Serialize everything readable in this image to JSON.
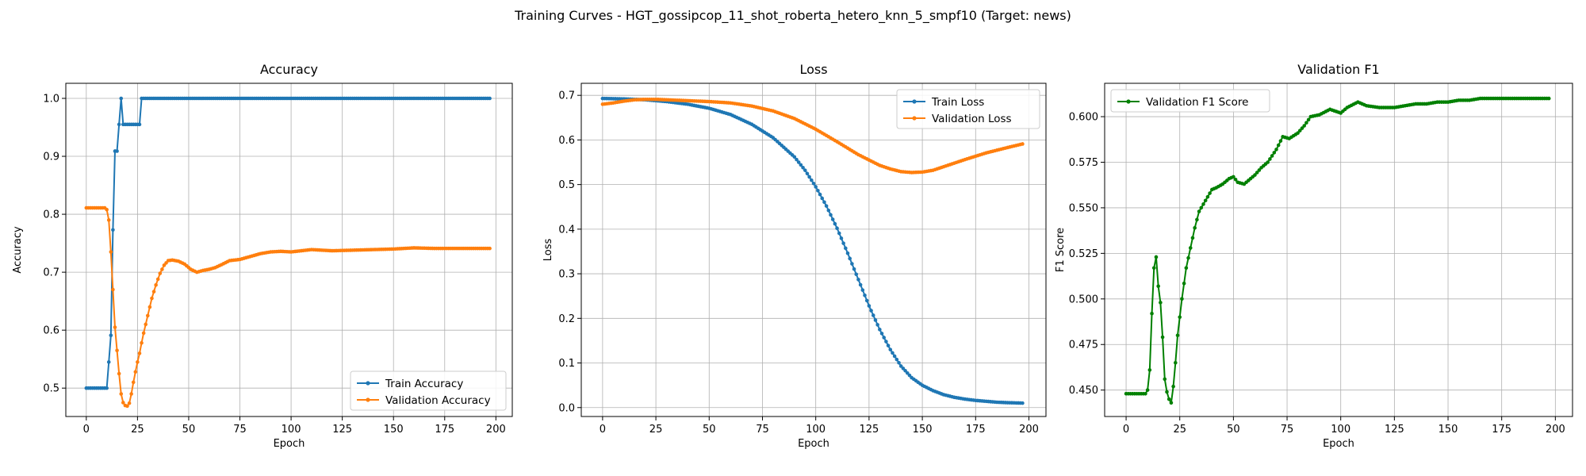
{
  "figure": {
    "title": "Training Curves - HGT_gossipcop_11_shot_roberta_hetero_knn_5_smpf10 (Target: news)"
  },
  "colors": {
    "train": "#1f77b4",
    "validation": "#ff7f0e",
    "f1": "#008000",
    "grid": "#b0b0b0"
  },
  "chart_data": [
    {
      "type": "line",
      "title": "Accuracy",
      "xlabel": "Epoch",
      "ylabel": "Accuracy",
      "xlim": [
        -10,
        208
      ],
      "ylim": [
        0.451,
        1.026
      ],
      "xticks": [
        0,
        25,
        50,
        75,
        100,
        125,
        150,
        175,
        200
      ],
      "yticks": [
        0.5,
        0.6,
        0.7,
        0.8,
        0.9,
        1.0
      ],
      "ytick_labels": [
        "0.5",
        "0.6",
        "0.7",
        "0.8",
        "0.9",
        "1.0"
      ],
      "grid": true,
      "legend_position": "lower-right",
      "series": [
        {
          "name": "Train Accuracy",
          "color": "#1f77b4",
          "points": [
            [
              0,
              0.5
            ],
            [
              10,
              0.5
            ],
            [
              11,
              0.545
            ],
            [
              12,
              0.591
            ],
            [
              13,
              0.773
            ],
            [
              14,
              0.909
            ],
            [
              15,
              0.909
            ],
            [
              16,
              0.955
            ],
            [
              17,
              1.0
            ],
            [
              18,
              0.955
            ],
            [
              26,
              0.955
            ],
            [
              27,
              1.0
            ],
            [
              197,
              1.0
            ]
          ]
        },
        {
          "name": "Validation Accuracy",
          "color": "#ff7f0e",
          "points": [
            [
              0,
              0.811
            ],
            [
              9,
              0.811
            ],
            [
              10,
              0.808
            ],
            [
              11,
              0.79
            ],
            [
              12,
              0.735
            ],
            [
              13,
              0.67
            ],
            [
              14,
              0.605
            ],
            [
              15,
              0.565
            ],
            [
              16,
              0.525
            ],
            [
              17,
              0.49
            ],
            [
              18,
              0.475
            ],
            [
              19,
              0.47
            ],
            [
              20,
              0.469
            ],
            [
              21,
              0.474
            ],
            [
              22,
              0.49
            ],
            [
              23,
              0.51
            ],
            [
              24,
              0.528
            ],
            [
              25,
              0.545
            ],
            [
              26,
              0.56
            ],
            [
              27,
              0.578
            ],
            [
              28,
              0.595
            ],
            [
              29,
              0.61
            ],
            [
              30,
              0.625
            ],
            [
              32,
              0.655
            ],
            [
              34,
              0.678
            ],
            [
              36,
              0.698
            ],
            [
              38,
              0.712
            ],
            [
              40,
              0.72
            ],
            [
              42,
              0.721
            ],
            [
              45,
              0.719
            ],
            [
              48,
              0.714
            ],
            [
              51,
              0.705
            ],
            [
              54,
              0.7
            ],
            [
              57,
              0.703
            ],
            [
              60,
              0.705
            ],
            [
              63,
              0.708
            ],
            [
              66,
              0.713
            ],
            [
              70,
              0.72
            ],
            [
              75,
              0.722
            ],
            [
              80,
              0.727
            ],
            [
              85,
              0.732
            ],
            [
              90,
              0.735
            ],
            [
              95,
              0.736
            ],
            [
              100,
              0.735
            ],
            [
              105,
              0.737
            ],
            [
              110,
              0.739
            ],
            [
              115,
              0.738
            ],
            [
              120,
              0.737
            ],
            [
              130,
              0.738
            ],
            [
              140,
              0.739
            ],
            [
              150,
              0.74
            ],
            [
              160,
              0.742
            ],
            [
              170,
              0.741
            ],
            [
              180,
              0.741
            ],
            [
              197,
              0.741
            ]
          ]
        }
      ]
    },
    {
      "type": "line",
      "title": "Loss",
      "xlabel": "Epoch",
      "ylabel": "Loss",
      "xlim": [
        -10,
        208
      ],
      "ylim": [
        -0.02,
        0.727
      ],
      "xticks": [
        0,
        25,
        50,
        75,
        100,
        125,
        150,
        175,
        200
      ],
      "yticks": [
        0.0,
        0.1,
        0.2,
        0.3,
        0.4,
        0.5,
        0.6,
        0.7
      ],
      "ytick_labels": [
        "0.0",
        "0.1",
        "0.2",
        "0.3",
        "0.4",
        "0.5",
        "0.6",
        "0.7"
      ],
      "grid": true,
      "legend_position": "upper-right",
      "series": [
        {
          "name": "Train Loss",
          "color": "#1f77b4",
          "points": [
            [
              0,
              0.693
            ],
            [
              10,
              0.692
            ],
            [
              20,
              0.69
            ],
            [
              30,
              0.686
            ],
            [
              40,
              0.68
            ],
            [
              50,
              0.671
            ],
            [
              60,
              0.657
            ],
            [
              70,
              0.635
            ],
            [
              80,
              0.605
            ],
            [
              90,
              0.562
            ],
            [
              95,
              0.532
            ],
            [
              100,
              0.495
            ],
            [
              105,
              0.452
            ],
            [
              110,
              0.402
            ],
            [
              115,
              0.346
            ],
            [
              120,
              0.287
            ],
            [
              125,
              0.228
            ],
            [
              130,
              0.175
            ],
            [
              135,
              0.13
            ],
            [
              140,
              0.093
            ],
            [
              145,
              0.067
            ],
            [
              150,
              0.05
            ],
            [
              155,
              0.038
            ],
            [
              160,
              0.029
            ],
            [
              165,
              0.023
            ],
            [
              170,
              0.019
            ],
            [
              175,
              0.016
            ],
            [
              180,
              0.014
            ],
            [
              185,
              0.012
            ],
            [
              190,
              0.011
            ],
            [
              197,
              0.01
            ]
          ]
        },
        {
          "name": "Validation Loss",
          "color": "#ff7f0e",
          "points": [
            [
              0,
              0.68
            ],
            [
              5,
              0.683
            ],
            [
              10,
              0.687
            ],
            [
              15,
              0.69
            ],
            [
              20,
              0.691
            ],
            [
              25,
              0.691
            ],
            [
              30,
              0.69
            ],
            [
              40,
              0.688
            ],
            [
              50,
              0.686
            ],
            [
              60,
              0.683
            ],
            [
              70,
              0.676
            ],
            [
              80,
              0.665
            ],
            [
              90,
              0.648
            ],
            [
              100,
              0.624
            ],
            [
              110,
              0.596
            ],
            [
              120,
              0.567
            ],
            [
              130,
              0.543
            ],
            [
              135,
              0.535
            ],
            [
              140,
              0.529
            ],
            [
              145,
              0.527
            ],
            [
              150,
              0.528
            ],
            [
              155,
              0.532
            ],
            [
              160,
              0.54
            ],
            [
              170,
              0.556
            ],
            [
              180,
              0.571
            ],
            [
              190,
              0.583
            ],
            [
              197,
              0.591
            ]
          ]
        }
      ]
    },
    {
      "type": "line",
      "title": "Validation F1",
      "xlabel": "Epoch",
      "ylabel": "F1 Score",
      "xlim": [
        -10,
        208
      ],
      "ylim": [
        0.4355,
        0.6183
      ],
      "xticks": [
        0,
        25,
        50,
        75,
        100,
        125,
        150,
        175,
        200
      ],
      "yticks": [
        0.45,
        0.475,
        0.5,
        0.525,
        0.55,
        0.575,
        0.6
      ],
      "ytick_labels": [
        "0.450",
        "0.475",
        "0.500",
        "0.525",
        "0.550",
        "0.575",
        "0.600"
      ],
      "grid": true,
      "legend_position": "upper-left",
      "series": [
        {
          "name": "Validation F1 Score",
          "color": "#008000",
          "points": [
            [
              0,
              0.448
            ],
            [
              8,
              0.448
            ],
            [
              9,
              0.448
            ],
            [
              10,
              0.45
            ],
            [
              11,
              0.461
            ],
            [
              12,
              0.492
            ],
            [
              13,
              0.517
            ],
            [
              14,
              0.523
            ],
            [
              15,
              0.507
            ],
            [
              16,
              0.498
            ],
            [
              17,
              0.479
            ],
            [
              18,
              0.456
            ],
            [
              19,
              0.449
            ],
            [
              20,
              0.445
            ],
            [
              21,
              0.443
            ],
            [
              22,
              0.452
            ],
            [
              23,
              0.465
            ],
            [
              24,
              0.48
            ],
            [
              25,
              0.49
            ],
            [
              26,
              0.5
            ],
            [
              28,
              0.517
            ],
            [
              30,
              0.528
            ],
            [
              32,
              0.539
            ],
            [
              34,
              0.548
            ],
            [
              36,
              0.552
            ],
            [
              38,
              0.556
            ],
            [
              40,
              0.56
            ],
            [
              42,
              0.561
            ],
            [
              45,
              0.563
            ],
            [
              48,
              0.566
            ],
            [
              50,
              0.567
            ],
            [
              52,
              0.564
            ],
            [
              55,
              0.563
            ],
            [
              57,
              0.565
            ],
            [
              60,
              0.568
            ],
            [
              63,
              0.572
            ],
            [
              66,
              0.575
            ],
            [
              70,
              0.582
            ],
            [
              73,
              0.589
            ],
            [
              76,
              0.588
            ],
            [
              80,
              0.591
            ],
            [
              83,
              0.595
            ],
            [
              86,
              0.6
            ],
            [
              90,
              0.601
            ],
            [
              95,
              0.604
            ],
            [
              100,
              0.602
            ],
            [
              103,
              0.605
            ],
            [
              108,
              0.608
            ],
            [
              112,
              0.606
            ],
            [
              118,
              0.605
            ],
            [
              125,
              0.605
            ],
            [
              130,
              0.606
            ],
            [
              135,
              0.607
            ],
            [
              140,
              0.607
            ],
            [
              145,
              0.608
            ],
            [
              150,
              0.608
            ],
            [
              155,
              0.609
            ],
            [
              160,
              0.609
            ],
            [
              165,
              0.61
            ],
            [
              170,
              0.61
            ],
            [
              175,
              0.61
            ],
            [
              180,
              0.61
            ],
            [
              185,
              0.61
            ],
            [
              190,
              0.61
            ],
            [
              197,
              0.61
            ]
          ]
        }
      ]
    }
  ]
}
